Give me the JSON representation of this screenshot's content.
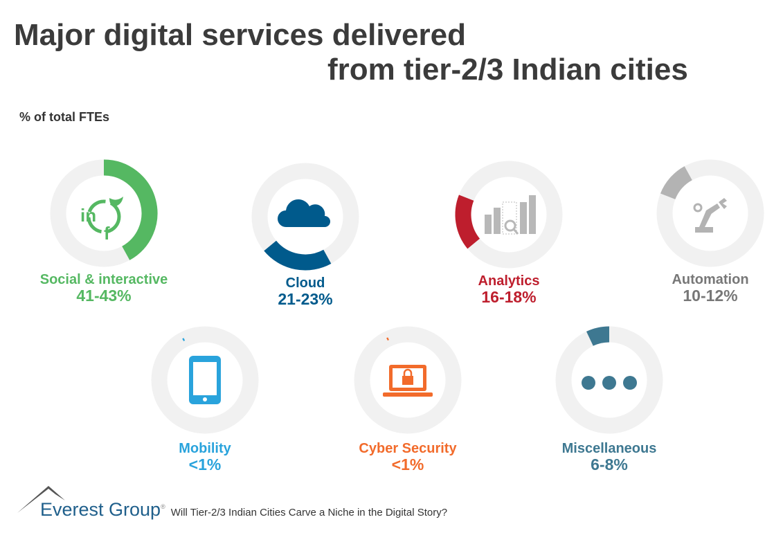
{
  "title_line1": "Major digital services delivered",
  "title_line2": "from tier-2/3 Indian cities",
  "subtitle": "% of total FTEs",
  "chart_data": {
    "type": "pie",
    "title": "Major digital services delivered from tier-2/3 Indian cities",
    "unit": "% of total FTEs",
    "segments": [
      {
        "name": "Social & interactive",
        "label": "41-43%",
        "value": 42,
        "color": "#55b862",
        "icon": "social-media-icon"
      },
      {
        "name": "Cloud",
        "label": "21-23%",
        "value": 22,
        "color": "#005a8c",
        "icon": "cloud-icon"
      },
      {
        "name": "Analytics",
        "label": "16-18%",
        "value": 17,
        "color": "#be1e2d",
        "icon": "bar-chart-magnifier-icon"
      },
      {
        "name": "Automation",
        "label": "10-12%",
        "value": 11,
        "color": "#b3b3b3",
        "icon": "robot-arm-icon"
      },
      {
        "name": "Mobility",
        "label": "<1%",
        "value": 0.5,
        "color": "#29a3dc",
        "icon": "smartphone-icon"
      },
      {
        "name": "Cyber Security",
        "label": "<1%",
        "value": 0.5,
        "color": "#f26b2b",
        "icon": "laptop-lock-icon"
      },
      {
        "name": "Miscellaneous",
        "label": "6-8%",
        "value": 7,
        "color": "#3e7891",
        "icon": "ellipsis-icon"
      }
    ],
    "track_color": "#f1f1f1",
    "label_color_automation": "#777777"
  },
  "footer": {
    "logo": "Everest Group",
    "registered": "®",
    "tagline": "Will Tier-2/3 Indian Cities Carve a Niche in the Digital Story?"
  }
}
